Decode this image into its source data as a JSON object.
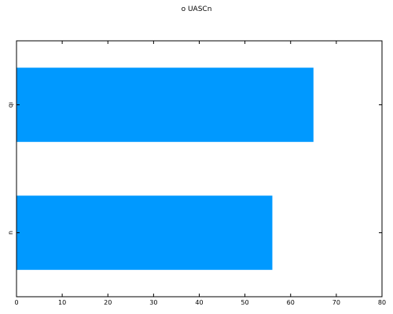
{
  "chart_data": {
    "type": "bar",
    "orientation": "horizontal",
    "title": "o UASCn",
    "categories": [
      "n",
      "qı"
    ],
    "values": [
      56,
      65
    ],
    "xlim": [
      0,
      80
    ],
    "xticks": [
      0,
      10,
      20,
      30,
      40,
      50,
      60,
      70,
      80
    ],
    "bar_color": "#0099ff",
    "grid": false,
    "legend": "none"
  }
}
